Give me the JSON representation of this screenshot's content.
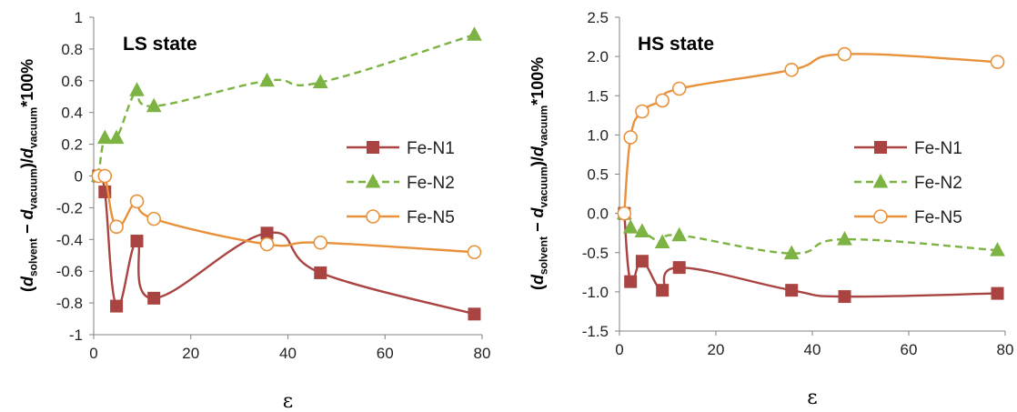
{
  "chart_data": [
    {
      "type": "line",
      "title": "LS state",
      "xlabel": "ε",
      "ylabel": {
        "d": "d",
        "solvent": "solvent",
        "vacuum": "vacuum",
        "tail": "*100%"
      },
      "xlim": [
        0,
        80
      ],
      "ylim": [
        -1,
        1
      ],
      "xticks": [
        0,
        20,
        40,
        60,
        80
      ],
      "yticks": [
        -1,
        -0.8,
        -0.6,
        -0.4,
        -0.2,
        0,
        0.2,
        0.4,
        0.6,
        0.8,
        1
      ],
      "xtick_labels": [
        "0",
        "20",
        "40",
        "60",
        "80"
      ],
      "ytick_labels": [
        "-1",
        "-0.8",
        "-0.6",
        "-0.4",
        "-0.2",
        "0",
        "0.2",
        "0.4",
        "0.6",
        "0.8",
        "1"
      ],
      "legend_position": "right-middle",
      "series": [
        {
          "name": "Fe-N1",
          "color": "#A94442",
          "marker": "square",
          "line": "solid",
          "x": [
            1,
            2.3,
            4.7,
            8.9,
            12.4,
            35.7,
            46.7,
            78.4
          ],
          "y": [
            0,
            -0.1,
            -0.82,
            -0.41,
            -0.77,
            -0.36,
            -0.61,
            -0.87
          ]
        },
        {
          "name": "Fe-N2",
          "color": "#7CB342",
          "marker": "triangle",
          "line": "dashed",
          "x": [
            1,
            2.3,
            4.7,
            8.9,
            12.4,
            35.7,
            46.7,
            78.4
          ],
          "y": [
            0,
            0.24,
            0.24,
            0.54,
            0.44,
            0.6,
            0.59,
            0.89
          ]
        },
        {
          "name": "Fe-N5",
          "color": "#E8913A",
          "marker": "circle-open",
          "line": "solid",
          "x": [
            1,
            2.3,
            4.7,
            8.9,
            12.4,
            35.7,
            46.7,
            78.4
          ],
          "y": [
            0,
            0,
            -0.32,
            -0.16,
            -0.27,
            -0.43,
            -0.42,
            -0.48
          ]
        }
      ]
    },
    {
      "type": "line",
      "title": "HS state",
      "xlabel": "ε",
      "ylabel": {
        "d": "d",
        "solvent": "solvent",
        "vacuum": "vacuum",
        "tail": "*100%"
      },
      "xlim": [
        0,
        80
      ],
      "ylim": [
        -1.5,
        2.5
      ],
      "xticks": [
        0,
        20,
        40,
        60,
        80
      ],
      "yticks": [
        -1.5,
        -1.0,
        -0.5,
        0,
        0.5,
        1.0,
        1.5,
        2.0,
        2.5
      ],
      "xtick_labels": [
        "0",
        "20",
        "40",
        "60",
        "80"
      ],
      "ytick_labels": [
        "-1.5",
        "-1.0",
        "-0.5",
        "0.0",
        "0.5",
        "1.0",
        "1.5",
        "2.0",
        "2.5"
      ],
      "legend_position": "right-middle",
      "series": [
        {
          "name": "Fe-N1",
          "color": "#A94442",
          "marker": "square",
          "line": "solid",
          "x": [
            1,
            2.3,
            4.7,
            8.9,
            12.4,
            35.7,
            46.7,
            78.4
          ],
          "y": [
            0,
            -0.87,
            -0.61,
            -0.98,
            -0.69,
            -0.98,
            -1.06,
            -1.02
          ]
        },
        {
          "name": "Fe-N2",
          "color": "#7CB342",
          "marker": "triangle",
          "line": "dashed",
          "x": [
            1,
            2.3,
            4.7,
            8.9,
            12.4,
            35.7,
            46.7,
            78.4
          ],
          "y": [
            0,
            -0.18,
            -0.23,
            -0.37,
            -0.28,
            -0.51,
            -0.33,
            -0.47
          ]
        },
        {
          "name": "Fe-N5",
          "color": "#E8913A",
          "marker": "circle-open",
          "line": "solid",
          "x": [
            1,
            2.3,
            4.7,
            8.9,
            12.4,
            35.7,
            46.7,
            78.4
          ],
          "y": [
            0,
            0.97,
            1.3,
            1.44,
            1.59,
            1.83,
            2.03,
            1.93
          ]
        }
      ]
    }
  ]
}
